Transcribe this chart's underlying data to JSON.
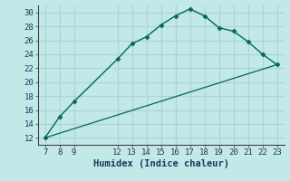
{
  "xlabel": "Humidex (Indice chaleur)",
  "bg_color": "#c2e8e8",
  "grid_color": "#b0d8d8",
  "line_color": "#006666",
  "marker_color": "#006666",
  "line1_x": [
    7,
    8,
    9,
    12,
    13,
    14,
    15,
    16,
    17,
    18,
    19,
    20,
    21,
    22,
    23
  ],
  "line1_y": [
    12,
    15,
    17.2,
    23.3,
    25.5,
    26.5,
    28.2,
    29.5,
    30.5,
    29.5,
    27.8,
    27.3,
    25.8,
    24,
    22.5
  ],
  "line2_x": [
    7,
    23
  ],
  "line2_y": [
    12,
    22.5
  ],
  "xlim": [
    6.5,
    23.5
  ],
  "ylim": [
    11,
    31
  ],
  "xticks": [
    7,
    8,
    9,
    12,
    13,
    14,
    15,
    16,
    17,
    18,
    19,
    20,
    21,
    22,
    23
  ],
  "yticks": [
    12,
    14,
    16,
    18,
    20,
    22,
    24,
    26,
    28,
    30
  ],
  "tick_fontsize": 6.5,
  "xlabel_fontsize": 7.5
}
